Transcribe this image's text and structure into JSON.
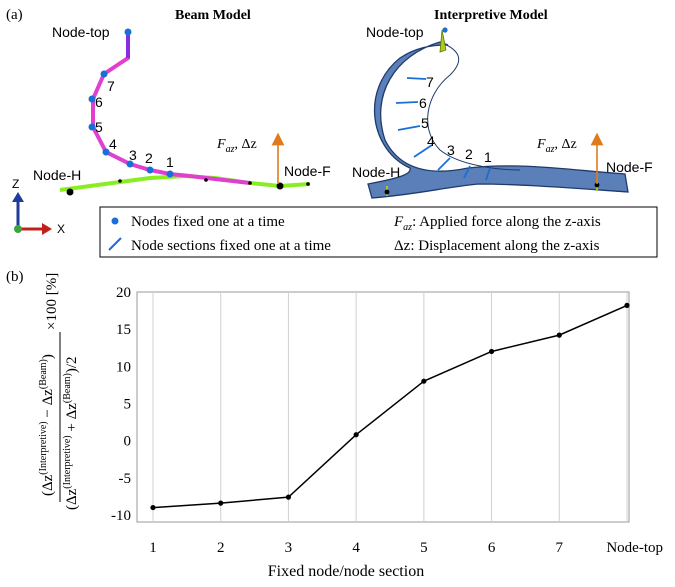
{
  "panel_a": {
    "label": "(a)",
    "beam_title": "Beam Model",
    "interp_title": "Interpretive Model",
    "node_top": "Node-top",
    "node_h": "Node-H",
    "node_f": "Node-F",
    "node_numbers": [
      "1",
      "2",
      "3",
      "4",
      "5",
      "6",
      "7"
    ],
    "force_label_main": "F",
    "force_label_sub": "az",
    "force_label_rest": ", Δz",
    "axis_z": "Z",
    "axis_x": "X",
    "colors": {
      "beam_vertical": "#e040d0",
      "beam_horizontal": "#88ee22",
      "top_segment": "#8a2be2",
      "node_dot": "#1a6fd6",
      "arrow": "#e07b1c",
      "body_fill": "#5b7fb8",
      "body_stroke": "#1f3b6b"
    }
  },
  "legend": {
    "items": [
      {
        "text": "Nodes fixed one at a time"
      },
      {
        "text": "Node sections fixed one at a time"
      }
    ],
    "defs": [
      {
        "sym_main": "F",
        "sym_sub": "az",
        "text": ": Applied force along the z-axis"
      },
      {
        "sym_main": "Δz",
        "sym_sub": "",
        "text": ": Displacement along the z-axis"
      }
    ]
  },
  "chart_data": {
    "panel_label": "(b)",
    "type": "line",
    "categories": [
      "1",
      "2",
      "3",
      "4",
      "5",
      "6",
      "7",
      "Node-top"
    ],
    "values": [
      -9.0,
      -8.4,
      -7.6,
      0.8,
      8.0,
      12.0,
      14.2,
      18.2
    ],
    "xlabel": "Fixed node/node section",
    "ylabel": "((Δz(Interpretive) − Δz(Beam)) / ((Δz(Interpretive) + Δz(Beam))/2)) ×100 [%]",
    "ylim": [
      -10,
      20
    ],
    "yticks": [
      -10,
      -5,
      0,
      5,
      10,
      15,
      20
    ],
    "grid": "vertical"
  }
}
